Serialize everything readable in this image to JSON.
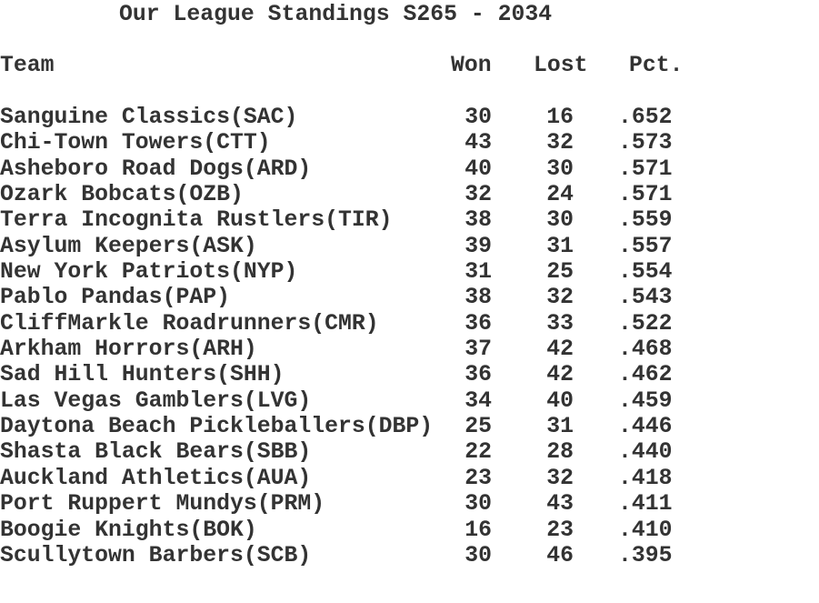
{
  "title": "Our League Standings S265 - 2034",
  "headers": {
    "team": "Team",
    "won": "Won",
    "lost": "Lost",
    "pct": "Pct."
  },
  "rows": [
    {
      "team": "Sanguine Classics(SAC)",
      "won": "30",
      "lost": "16",
      "pct": ".652"
    },
    {
      "team": "Chi-Town Towers(CTT)",
      "won": "43",
      "lost": "32",
      "pct": ".573"
    },
    {
      "team": "Asheboro Road Dogs(ARD)",
      "won": "40",
      "lost": "30",
      "pct": ".571"
    },
    {
      "team": "Ozark Bobcats(OZB)",
      "won": "32",
      "lost": "24",
      "pct": ".571"
    },
    {
      "team": "Terra Incognita Rustlers(TIR)",
      "won": "38",
      "lost": "30",
      "pct": ".559"
    },
    {
      "team": "Asylum Keepers(ASK)",
      "won": "39",
      "lost": "31",
      "pct": ".557"
    },
    {
      "team": "New York Patriots(NYP)",
      "won": "31",
      "lost": "25",
      "pct": ".554"
    },
    {
      "team": "Pablo Pandas(PAP)",
      "won": "38",
      "lost": "32",
      "pct": ".543"
    },
    {
      "team": "CliffMarkle Roadrunners(CMR)",
      "won": "36",
      "lost": "33",
      "pct": ".522"
    },
    {
      "team": "Arkham Horrors(ARH)",
      "won": "37",
      "lost": "42",
      "pct": ".468"
    },
    {
      "team": "Sad Hill Hunters(SHH)",
      "won": "36",
      "lost": "42",
      "pct": ".462"
    },
    {
      "team": "Las Vegas Gamblers(LVG)",
      "won": "34",
      "lost": "40",
      "pct": ".459"
    },
    {
      "team": "Daytona Beach Pickleballers(DBP)",
      "won": "25",
      "lost": "31",
      "pct": ".446"
    },
    {
      "team": "Shasta Black Bears(SBB)",
      "won": "22",
      "lost": "28",
      "pct": ".440"
    },
    {
      "team": "Auckland Athletics(AUA)",
      "won": "23",
      "lost": "32",
      "pct": ".418"
    },
    {
      "team": "Port Ruppert Mundys(PRM)",
      "won": "30",
      "lost": "43",
      "pct": ".411"
    },
    {
      "team": "Boogie Knights(BOK)",
      "won": "16",
      "lost": "23",
      "pct": ".410"
    },
    {
      "team": "Scullytown Barbers(SCB)",
      "won": "30",
      "lost": "46",
      "pct": ".395"
    }
  ]
}
